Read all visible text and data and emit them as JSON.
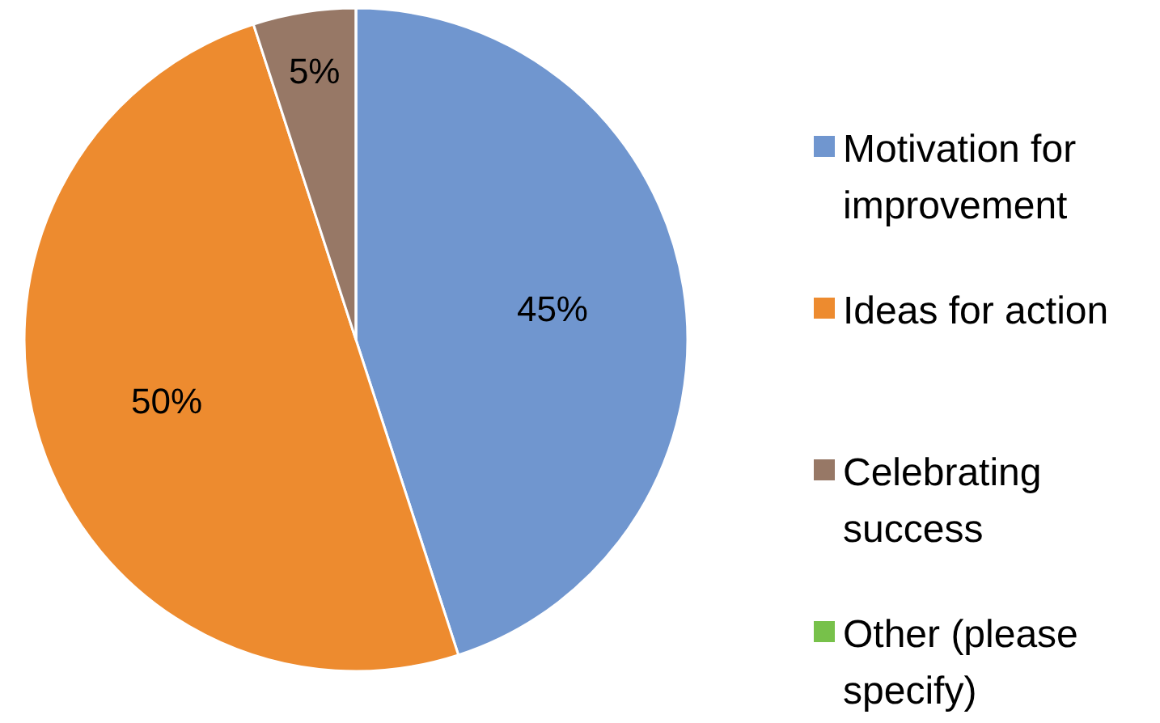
{
  "chart_data": {
    "type": "pie",
    "categories": [
      "Motivation for improvement",
      "Ideas for action",
      "Celebrating success",
      "Other (please specify)"
    ],
    "values": [
      45,
      50,
      5,
      0
    ],
    "colors": [
      "#7096cf",
      "#ed8b2f",
      "#977866",
      "#77c14a"
    ],
    "value_labels": [
      "45%",
      "50%",
      "5%",
      null
    ],
    "legend": "right"
  }
}
